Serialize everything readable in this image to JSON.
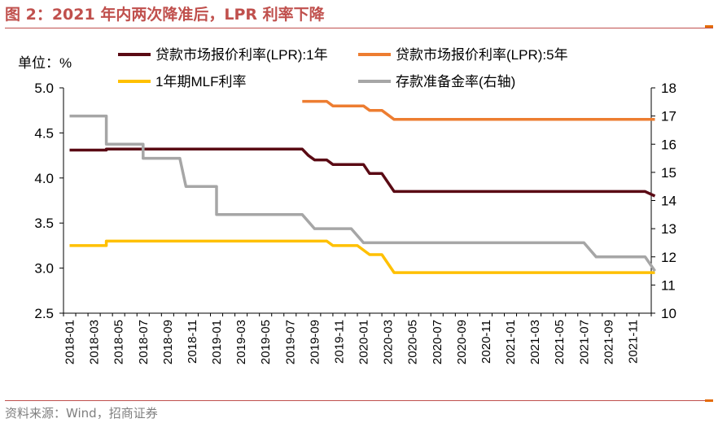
{
  "header": {
    "title": "图 2：2021 年内两次降准后，LPR 利率下降"
  },
  "footer": {
    "source": "资料来源：Wind，招商证券"
  },
  "colors": {
    "accent": "#c0504d",
    "lpr1": "#5a0a14",
    "lpr5": "#ed7d31",
    "mlf": "#ffc000",
    "rrr": "#a6a6a6"
  },
  "chart_data": {
    "type": "line",
    "unit_label": "单位：%",
    "x": [
      "2018-01",
      "2018-02",
      "2018-03",
      "2018-04",
      "2018-05",
      "2018-06",
      "2018-07",
      "2018-08",
      "2018-09",
      "2018-10",
      "2018-11",
      "2018-12",
      "2019-01",
      "2019-02",
      "2019-03",
      "2019-04",
      "2019-05",
      "2019-06",
      "2019-07",
      "2019-08",
      "2019-09",
      "2019-10",
      "2019-11",
      "2019-12",
      "2020-01",
      "2020-02",
      "2020-03",
      "2020-04",
      "2020-05",
      "2020-06",
      "2020-07",
      "2020-08",
      "2020-09",
      "2020-10",
      "2020-11",
      "2020-12",
      "2021-01",
      "2021-02",
      "2021-03",
      "2021-04",
      "2021-05",
      "2021-06",
      "2021-07",
      "2021-08",
      "2021-09",
      "2021-10",
      "2021-11",
      "2021-12"
    ],
    "x_tick_labels": [
      "2018-01",
      "2018-03",
      "2018-05",
      "2018-07",
      "2018-09",
      "2018-11",
      "2019-01",
      "2019-03",
      "2019-05",
      "2019-07",
      "2019-09",
      "2019-11",
      "2020-01",
      "2020-03",
      "2020-05",
      "2020-07",
      "2020-09",
      "2020-11",
      "2021-01",
      "2021-03",
      "2021-05",
      "2021-07",
      "2021-09",
      "2021-11"
    ],
    "y_left": {
      "range": [
        2.5,
        5.0
      ],
      "ticks": [
        "2.5",
        "3.0",
        "3.5",
        "4.0",
        "4.5",
        "5.0"
      ]
    },
    "y_right": {
      "range": [
        10,
        18
      ],
      "ticks": [
        "10",
        "11",
        "12",
        "13",
        "14",
        "15",
        "16",
        "17",
        "18"
      ]
    },
    "series": [
      {
        "name": "贷款市场报价利率(LPR):1年",
        "axis": "left",
        "points": [
          [
            0,
            4.31
          ],
          [
            3,
            4.31
          ],
          [
            3,
            4.32
          ],
          [
            19,
            4.32
          ],
          [
            19.5,
            4.25
          ],
          [
            20,
            4.2
          ],
          [
            21,
            4.2
          ],
          [
            21.5,
            4.15
          ],
          [
            23,
            4.15
          ],
          [
            24,
            4.15
          ],
          [
            24.5,
            4.05
          ],
          [
            25.5,
            4.05
          ],
          [
            26.5,
            3.85
          ],
          [
            47,
            3.85
          ],
          [
            47.8,
            3.8
          ]
        ]
      },
      {
        "name": "贷款市场报价利率(LPR):5年",
        "axis": "left",
        "points": [
          [
            19,
            4.85
          ],
          [
            21,
            4.85
          ],
          [
            21.5,
            4.8
          ],
          [
            23,
            4.8
          ],
          [
            24,
            4.8
          ],
          [
            24.5,
            4.75
          ],
          [
            25.5,
            4.75
          ],
          [
            26.5,
            4.65
          ],
          [
            47.8,
            4.65
          ]
        ]
      },
      {
        "name": "1年期MLF利率",
        "axis": "left",
        "points": [
          [
            0,
            3.25
          ],
          [
            3,
            3.25
          ],
          [
            3,
            3.3
          ],
          [
            21,
            3.3
          ],
          [
            21.5,
            3.25
          ],
          [
            23.5,
            3.25
          ],
          [
            24.5,
            3.15
          ],
          [
            25.5,
            3.15
          ],
          [
            26.5,
            2.95
          ],
          [
            47.8,
            2.95
          ]
        ]
      },
      {
        "name": "存款准备金率(右轴)",
        "axis": "right",
        "points": [
          [
            0,
            17
          ],
          [
            3,
            17
          ],
          [
            3,
            16
          ],
          [
            6,
            16
          ],
          [
            6,
            15.5
          ],
          [
            9,
            15.5
          ],
          [
            9.5,
            14.5
          ],
          [
            12,
            14.5
          ],
          [
            12,
            13.5
          ],
          [
            19,
            13.5
          ],
          [
            20,
            13
          ],
          [
            23,
            13
          ],
          [
            24,
            12.5
          ],
          [
            42,
            12.5
          ],
          [
            43,
            12
          ],
          [
            47,
            12
          ],
          [
            47.8,
            11.5
          ]
        ]
      }
    ]
  }
}
